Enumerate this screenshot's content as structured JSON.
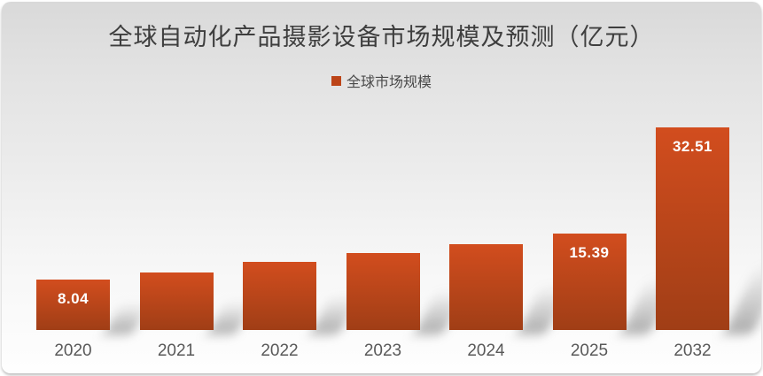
{
  "chart_data": {
    "type": "bar",
    "title": "全球自动化产品摄影设备市场规模及预测（亿元）",
    "legend": {
      "position": "top",
      "items": [
        {
          "label": "全球市场规模",
          "color": "#bc4418"
        }
      ]
    },
    "categories": [
      "2020",
      "2021",
      "2022",
      "2023",
      "2024",
      "2025",
      "2032"
    ],
    "series": [
      {
        "name": "全球市场规模",
        "values": [
          8.04,
          9.2,
          10.9,
          12.3,
          13.7,
          15.39,
          32.51
        ],
        "color_top": "#d24d1e",
        "color_bottom": "#a03e16"
      }
    ],
    "data_labels": [
      "8.04",
      "",
      "",
      "",
      "",
      "15.39",
      "32.51"
    ],
    "ylim": [
      0,
      34
    ],
    "xlabel": "",
    "ylabel": "",
    "grid": false,
    "y_axis_visible": false
  },
  "colors": {
    "title_text": "#3e3e3e",
    "axis_text": "#595959",
    "value_label_text": "#ffffff",
    "background_top": "#d9d9d9",
    "background_bottom": "#fefefe"
  }
}
